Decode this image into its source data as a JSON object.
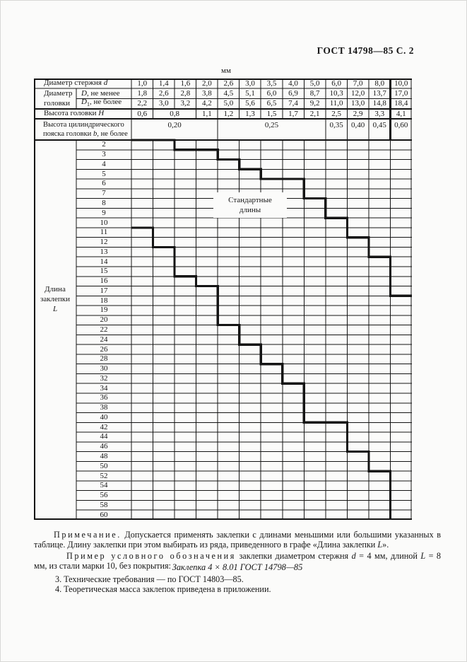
{
  "page": {
    "doc_ref": "ГОСТ 14798—85 С. 2",
    "units": "мм"
  },
  "table": {
    "labels": {
      "shank_diameter": {
        "text": "Диаметр стержня ",
        "symbol": "d"
      },
      "head_diameter": {
        "line1": "Диаметр",
        "line2": "головки"
      },
      "head_d_min": {
        "symbol": "D",
        "text": ", не менее"
      },
      "head_d1_max": {
        "symbol": "D",
        "sub": "1",
        "text": ", не более"
      },
      "head_height": {
        "text": "Высота головки ",
        "symbol": "H"
      },
      "collar_height": {
        "line1": "Высота цилиндрического",
        "line2a": "пояска головки ",
        "symbol": "b",
        "line2b": ", не более"
      },
      "length": {
        "line1": "Длина",
        "line2": "заклепки",
        "symbol": "L"
      }
    },
    "zone_label": {
      "line1": "Стандартные",
      "line2": "длины"
    },
    "shank_diameters": [
      "1,0",
      "1,4",
      "1,6",
      "2,0",
      "2,6",
      "3,0",
      "3,5",
      "4,0",
      "5,0",
      "6,0",
      "7,0",
      "8,0",
      "10,0"
    ],
    "head_diameter_min": [
      "1,8",
      "2,6",
      "2,8",
      "3,8",
      "4,5",
      "5,1",
      "6,0",
      "6,9",
      "8,7",
      "10,3",
      "12,0",
      "13,7",
      "17,0"
    ],
    "head_diameter_max": [
      "2,2",
      "3,0",
      "3,2",
      "4,2",
      "5,0",
      "5,6",
      "6,5",
      "7,4",
      "9,2",
      "11,0",
      "13,0",
      "14,8",
      "18,4"
    ],
    "head_height": [
      {
        "v": "0,6",
        "span": 1
      },
      {
        "v": "0,8",
        "span": 2
      },
      {
        "v": "1,1",
        "span": 1
      },
      {
        "v": "1,2",
        "span": 1
      },
      {
        "v": "1,3",
        "span": 1
      },
      {
        "v": "1,5",
        "span": 1
      },
      {
        "v": "1,7",
        "span": 1
      },
      {
        "v": "2,1",
        "span": 1
      },
      {
        "v": "2,5",
        "span": 1
      },
      {
        "v": "2,9",
        "span": 1
      },
      {
        "v": "3,3",
        "span": 1
      },
      {
        "v": "4,1",
        "span": 1
      }
    ],
    "collar_height": [
      {
        "v": "0,20",
        "span": 4
      },
      {
        "v": "0,25",
        "span": 5
      },
      {
        "v": "0,35",
        "span": 1
      },
      {
        "v": "0,40",
        "span": 1
      },
      {
        "v": "0,45",
        "span": 1
      },
      {
        "v": "0,60",
        "span": 1
      }
    ],
    "lengths": [
      "2",
      "3",
      "4",
      "5",
      "6",
      "7",
      "8",
      "9",
      "10",
      "11",
      "12",
      "13",
      "14",
      "15",
      "16",
      "17",
      "18",
      "19",
      "20",
      "22",
      "24",
      "26",
      "28",
      "30",
      "32",
      "34",
      "36",
      "38",
      "40",
      "42",
      "44",
      "46",
      "48",
      "50",
      "52",
      "54",
      "56",
      "58",
      "60"
    ],
    "standard_length_min": [
      "2",
      "2",
      "3",
      "3",
      "4",
      "5",
      "6",
      "6",
      "8",
      "10",
      "12",
      "14",
      "18"
    ],
    "standard_length_max": [
      "10",
      "12",
      "15",
      "16",
      "20",
      "24",
      "28",
      "32",
      "40",
      "40",
      "46",
      "50",
      "60"
    ]
  },
  "footer": {
    "note": {
      "heading": "Примечание.",
      "text1": " Допускается применять заклепки с длинами меньшими или большими указанных в таблице. Длину заклепки при этом выбирать из ряда, приведенного в графе «Длина заклепки ",
      "symbol": "L",
      "text2": "»."
    },
    "example": {
      "heading": "Пример условного обозначения",
      "text1": " заклепки диаметром стержня ",
      "symbol1": "d",
      "text2": " = 4 мм, длиной ",
      "symbol2": "L",
      "text3": " = 8 мм, из стали марки 10, без покрытия:"
    },
    "designation": "Заклепка 4 × 8.01 ГОСТ 14798—85",
    "items": [
      "3. Технические требования — по ГОСТ 14803—85.",
      "4. Теоретическая масса заклепок приведена в приложении."
    ]
  }
}
